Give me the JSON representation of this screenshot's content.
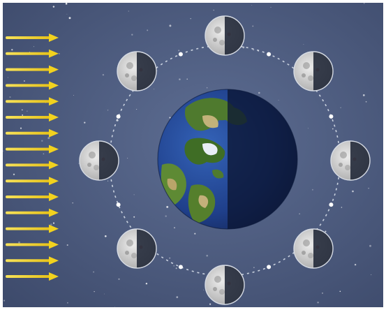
{
  "diagram": {
    "sunlight_color": "#f2d21e",
    "space_color": "#4a5a7e",
    "orbit_color": "#dfe6f0",
    "earth_ocean_color": "#1f3f8a",
    "earth_land_color": "#4f7a2e",
    "earth_shadow_color": "#0b1633",
    "moon_lit_color": "#d8d8d8",
    "moon_dark_color": "#1f2636",
    "sunlight_ray_count": 16,
    "moon_positions": [
      {
        "name": "moon-top"
      },
      {
        "name": "moon-top-right"
      },
      {
        "name": "moon-right"
      },
      {
        "name": "moon-bottom-right"
      },
      {
        "name": "moon-bottom"
      },
      {
        "name": "moon-bottom-left"
      },
      {
        "name": "moon-left"
      },
      {
        "name": "moon-top-left"
      }
    ]
  }
}
